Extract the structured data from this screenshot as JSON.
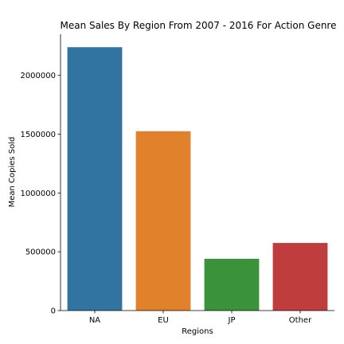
{
  "chart_data": {
    "type": "bar",
    "title": "Mean Sales By Region From 2007 - 2016 For Action Genre",
    "xlabel": "Regions",
    "ylabel": "Mean Copies Sold",
    "categories": [
      "NA",
      "EU",
      "JP",
      "Other"
    ],
    "values": [
      2240000,
      1525000,
      440000,
      575000
    ],
    "colors": [
      "#3274a1",
      "#e1812c",
      "#3a923a",
      "#c03d3e"
    ],
    "yticks": [
      0,
      500000,
      1000000,
      1500000,
      2000000
    ],
    "ytick_labels": [
      "0",
      "500000",
      "1000000",
      "1500000",
      "2000000"
    ],
    "ylim": [
      0,
      2350000
    ],
    "grid": false,
    "legend": "none"
  }
}
